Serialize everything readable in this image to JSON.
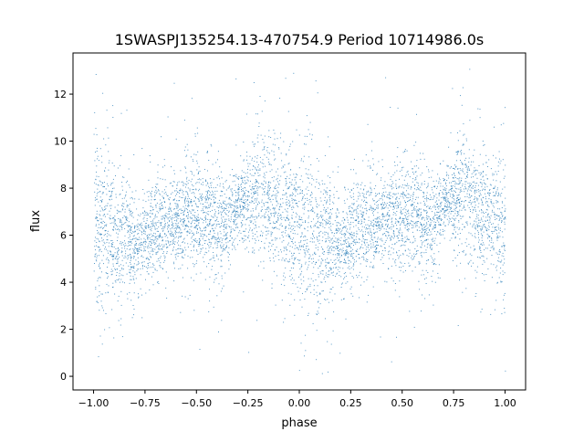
{
  "chart_data": {
    "type": "scatter",
    "title": "1SWASPJ135254.13-470754.9 Period 10714986.0s",
    "xlabel": "phase",
    "ylabel": "flux",
    "xlim": [
      -1.1,
      1.1
    ],
    "ylim": [
      -0.58,
      13.75
    ],
    "xticks": [
      -1.0,
      -0.75,
      -0.5,
      -0.25,
      0.0,
      0.25,
      0.5,
      0.75,
      1.0
    ],
    "xtick_labels": [
      "−1.00",
      "−0.75",
      "−0.50",
      "−0.25",
      "0.00",
      "0.25",
      "0.50",
      "0.75",
      "1.00"
    ],
    "yticks": [
      0,
      2,
      4,
      6,
      8,
      10,
      12
    ],
    "ytick_labels": [
      "0",
      "2",
      "4",
      "6",
      "8",
      "10",
      "12"
    ],
    "grid": false,
    "legend": "none",
    "marker_color": "#1f77b4",
    "note": "Phase-folded light curve summarized as binned flux (phase bin centers, mean, typical low, typical high); the pattern repeats with period 1.0 in phase",
    "bins": {
      "phase": [
        -1.0,
        -0.95,
        -0.9,
        -0.85,
        -0.8,
        -0.75,
        -0.7,
        -0.65,
        -0.6,
        -0.55,
        -0.5,
        -0.45,
        -0.4,
        -0.35,
        -0.3,
        -0.25,
        -0.2,
        -0.15,
        -0.1,
        -0.05
      ],
      "mean": [
        6.5,
        6.5,
        6.0,
        6.0,
        5.5,
        6.0,
        6.3,
        6.5,
        6.8,
        6.8,
        6.8,
        6.8,
        6.5,
        6.5,
        7.5,
        7.5,
        8.0,
        7.3,
        7.0,
        6.8
      ],
      "low": [
        3.0,
        3.0,
        3.5,
        3.0,
        4.0,
        4.0,
        4.0,
        4.5,
        5.0,
        4.0,
        4.0,
        4.5,
        4.0,
        4.5,
        6.0,
        5.5,
        5.0,
        5.0,
        4.0,
        4.0
      ],
      "high": [
        10.0,
        10.5,
        9.5,
        9.0,
        7.5,
        8.0,
        8.5,
        8.5,
        8.5,
        9.0,
        9.0,
        9.0,
        9.0,
        8.5,
        8.5,
        9.5,
        11.0,
        10.0,
        9.5,
        9.5
      ]
    }
  }
}
